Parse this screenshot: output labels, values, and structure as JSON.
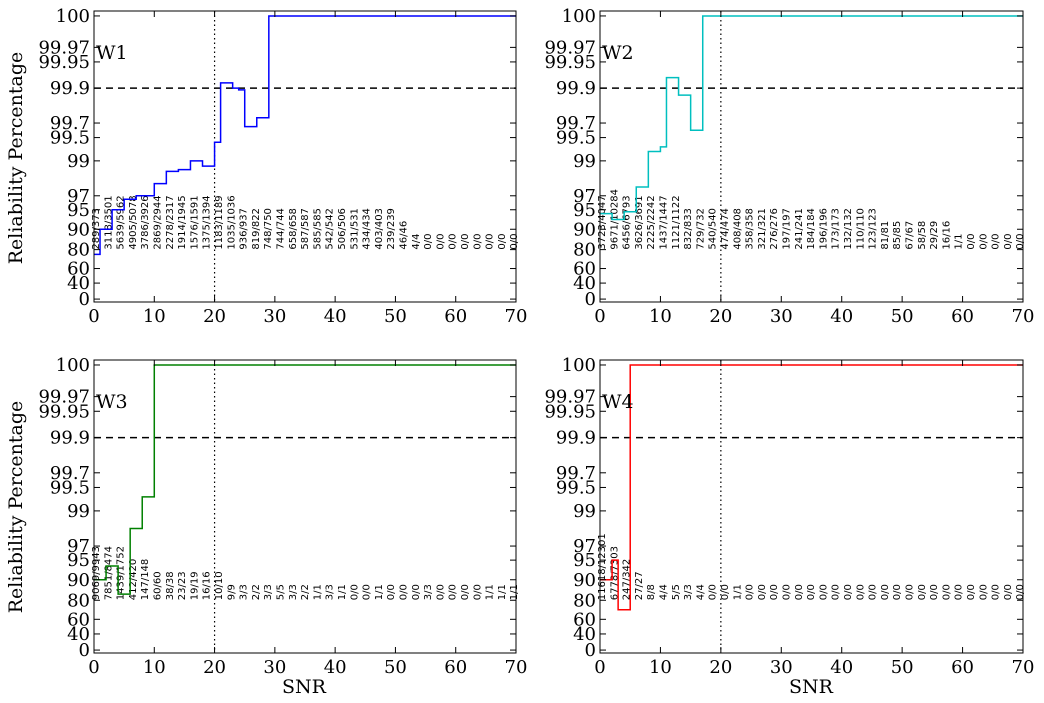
{
  "figure": {
    "ylabel": "Reliability Percentage",
    "xlabel": "SNR"
  },
  "chart_data": [
    {
      "type": "line",
      "panel": "W1",
      "color": "#0000ff",
      "xlim": [
        0,
        70
      ],
      "ylim_ticks": [
        "0",
        "40",
        "60",
        "80",
        "90",
        "95",
        "97",
        "99",
        "99.5",
        "99.7",
        "99.9",
        "99.95",
        "99.97",
        "100"
      ],
      "xticks": [
        "0",
        "10",
        "20",
        "30",
        "40",
        "50",
        "60",
        "70"
      ],
      "reference_lines": {
        "y_dashed": 99.9,
        "x_dotted": 20
      },
      "step_x": [
        0,
        1,
        2,
        3,
        4,
        5,
        6,
        7,
        8,
        9,
        10,
        11,
        12,
        13,
        14,
        15,
        16,
        17,
        18,
        19,
        20,
        21,
        22,
        23,
        24,
        25,
        26,
        27,
        28,
        29,
        30,
        70
      ],
      "step_y": [
        75,
        90,
        90,
        95,
        95,
        96.5,
        96.5,
        97,
        97,
        97,
        97.7,
        97.7,
        98.4,
        98.4,
        98.5,
        98.5,
        99,
        99,
        98.7,
        98.7,
        99.4,
        99.91,
        99.91,
        99.9,
        99.89,
        99.65,
        99.65,
        99.73,
        99.73,
        100,
        100,
        100
      ],
      "counts": [
        "289/373",
        "3118/3501",
        "5639/5962",
        "4905/5078",
        "3786/3926",
        "2869/2944",
        "2278/2317",
        "1914/1945",
        "1576/1591",
        "1375/1394",
        "1183/1189",
        "1035/1036",
        "936/937",
        "819/822",
        "748/750",
        "744/744",
        "658/658",
        "587/587",
        "585/585",
        "542/542",
        "506/506",
        "531/531",
        "434/434",
        "403/403",
        "239/239",
        "46/46",
        "4/4",
        "0/0",
        "0/0",
        "0/0",
        "0/0",
        "0/0",
        "0/0",
        "0/0",
        "0/0"
      ]
    },
    {
      "type": "line",
      "panel": "W2",
      "color": "#00bfbf",
      "xlim": [
        0,
        70
      ],
      "ylim_ticks": [
        "0",
        "40",
        "60",
        "80",
        "90",
        "95",
        "97",
        "99",
        "99.5",
        "99.7",
        "99.9",
        "99.95",
        "99.97",
        "100"
      ],
      "xticks": [
        "0",
        "10",
        "20",
        "30",
        "40",
        "50",
        "60",
        "70"
      ],
      "reference_lines": {
        "y_dashed": 99.9,
        "x_dotted": 20
      },
      "step_x": [
        0,
        1,
        2,
        3,
        4,
        5,
        6,
        7,
        8,
        9,
        10,
        11,
        12,
        13,
        14,
        15,
        16,
        17,
        18,
        70
      ],
      "step_y": [
        94,
        94,
        92.5,
        92.5,
        94.5,
        94.5,
        97.5,
        97.5,
        99.2,
        99.2,
        99.3,
        99.92,
        99.92,
        99.86,
        99.86,
        99.6,
        99.6,
        100,
        100,
        100
      ],
      "counts": [
        "3723/4047",
        "9671/10284",
        "6456/6793",
        "3626/3691",
        "2225/2242",
        "1437/1447",
        "1121/1122",
        "832/833",
        "729/732",
        "540/540",
        "474/474",
        "408/408",
        "358/358",
        "321/321",
        "276/276",
        "197/197",
        "241/241",
        "184/184",
        "196/196",
        "173/173",
        "132/132",
        "110/110",
        "123/123",
        "81/81",
        "85/85",
        "67/67",
        "58/58",
        "29/29",
        "16/16",
        "1/1",
        "0/0",
        "0/0",
        "0/0",
        "0/0",
        "0/0"
      ]
    },
    {
      "type": "line",
      "panel": "W3",
      "color": "#008000",
      "xlim": [
        0,
        70
      ],
      "ylim_ticks": [
        "0",
        "40",
        "60",
        "80",
        "90",
        "95",
        "97",
        "99",
        "99.5",
        "99.7",
        "99.9",
        "99.95",
        "99.97",
        "100"
      ],
      "xticks": [
        "0",
        "10",
        "20",
        "30",
        "40",
        "50",
        "60",
        "70"
      ],
      "reference_lines": {
        "y_dashed": 99.9,
        "x_dotted": 20
      },
      "step_x": [
        0,
        1,
        2,
        3,
        4,
        5,
        6,
        7,
        8,
        9,
        10,
        70
      ],
      "step_y": [
        90,
        90,
        93.5,
        93.5,
        83,
        83,
        98,
        98,
        99.3,
        99.3,
        100,
        100
      ],
      "counts": [
        "9069/9943",
        "7851/8474",
        "1439/1752",
        "412/420",
        "147/148",
        "60/60",
        "38/38",
        "23/23",
        "19/19",
        "16/16",
        "10/10",
        "9/9",
        "3/3",
        "2/2",
        "3/3",
        "5/5",
        "3/3",
        "2/2",
        "1/1",
        "3/3",
        "1/1",
        "0/0",
        "0/0",
        "1/1",
        "0/0",
        "0/0",
        "0/0",
        "3/3",
        "0/0",
        "0/0",
        "0/0",
        "0/0",
        "1/1",
        "1/1",
        "1/1"
      ]
    },
    {
      "type": "line",
      "panel": "W4",
      "color": "#ff0000",
      "xlim": [
        0,
        70
      ],
      "ylim_ticks": [
        "0",
        "40",
        "60",
        "80",
        "90",
        "95",
        "97",
        "99",
        "99.5",
        "99.7",
        "99.9",
        "99.95",
        "99.97",
        "100"
      ],
      "xticks": [
        "0",
        "10",
        "20",
        "30",
        "40",
        "50",
        "60",
        "70"
      ],
      "reference_lines": {
        "y_dashed": 99.9,
        "x_dotted": 20
      },
      "step_x": [
        0,
        1,
        2,
        3,
        4,
        5,
        70
      ],
      "step_y": [
        90,
        90,
        95,
        70,
        70,
        100,
        100
      ],
      "counts": [
        "11618/12301",
        "6778/7303",
        "247/342",
        "27/27",
        "8/8",
        "4/4",
        "5/5",
        "3/3",
        "4/4",
        "0/0",
        "0/0",
        "1/1",
        "0/0",
        "0/0",
        "0/0",
        "0/0",
        "0/0",
        "0/0",
        "0/0",
        "0/0",
        "0/0",
        "0/0",
        "0/0",
        "0/0",
        "0/0",
        "0/0",
        "0/0",
        "0/0",
        "0/0",
        "0/0",
        "0/0",
        "0/0",
        "0/0",
        "0/0",
        "0/0"
      ]
    }
  ]
}
